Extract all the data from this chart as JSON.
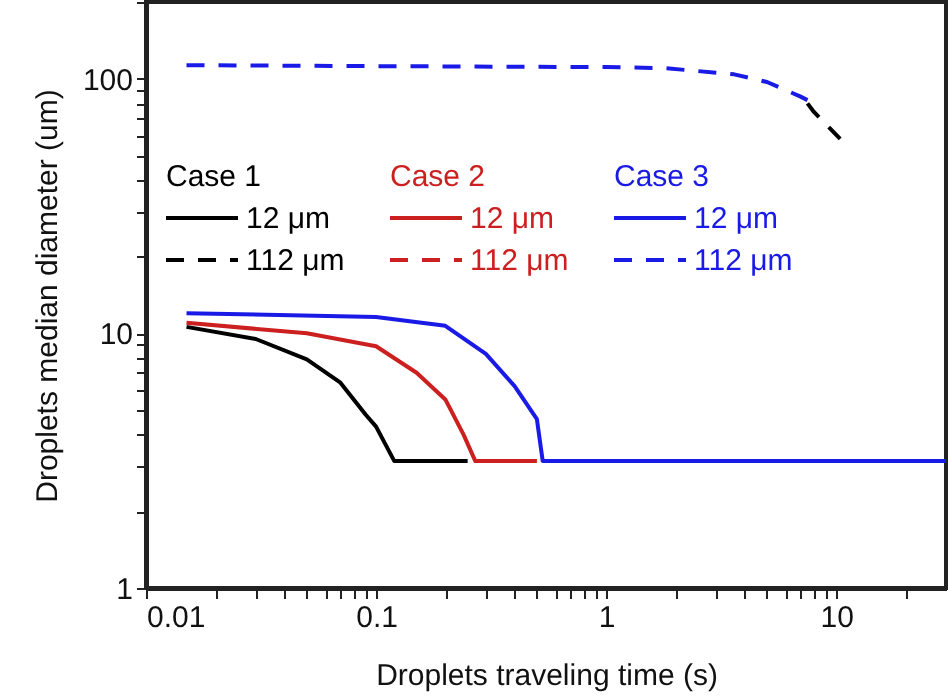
{
  "chart_data": {
    "type": "line",
    "xlabel": "Droplets traveling time (s)",
    "ylabel": "Droplets median diameter (um)",
    "log": "xy",
    "xlim": [
      0.01,
      30
    ],
    "ylim": [
      1,
      200
    ],
    "xticks": [
      0.01,
      {
        "value": 0.02,
        "label": null
      },
      {
        "value": 0.03,
        "label": null
      },
      {
        "value": 0.04,
        "label": null
      },
      {
        "value": 0.05,
        "label": null
      },
      {
        "value": 0.06,
        "label": null
      },
      {
        "value": 0.07,
        "label": null
      },
      {
        "value": 0.08,
        "label": null
      },
      {
        "value": 0.09,
        "label": null
      },
      0.1,
      {
        "value": 0.2,
        "label": null
      },
      {
        "value": 0.3,
        "label": null
      },
      {
        "value": 0.4,
        "label": null
      },
      {
        "value": 0.5,
        "label": null
      },
      {
        "value": 0.6,
        "label": null
      },
      {
        "value": 0.7,
        "label": null
      },
      {
        "value": 0.8,
        "label": null
      },
      {
        "value": 0.9,
        "label": null
      },
      1,
      {
        "value": 2,
        "label": null
      },
      {
        "value": 3,
        "label": null
      },
      {
        "value": 4,
        "label": null
      },
      {
        "value": 5,
        "label": null
      },
      {
        "value": 6,
        "label": null
      },
      {
        "value": 7,
        "label": null
      },
      {
        "value": 8,
        "label": null
      },
      {
        "value": 9,
        "label": null
      },
      10,
      {
        "value": 20,
        "label": null
      }
    ],
    "yticks": [
      1,
      {
        "value": 2,
        "label": null
      },
      {
        "value": 3,
        "label": null
      },
      {
        "value": 4,
        "label": null
      },
      {
        "value": 5,
        "label": null
      },
      {
        "value": 6,
        "label": null
      },
      {
        "value": 7,
        "label": null
      },
      {
        "value": 8,
        "label": null
      },
      {
        "value": 9,
        "label": null
      },
      10,
      {
        "value": 20,
        "label": null
      },
      {
        "value": 30,
        "label": null
      },
      {
        "value": 40,
        "label": null
      },
      {
        "value": 50,
        "label": null
      },
      {
        "value": 60,
        "label": null
      },
      {
        "value": 70,
        "label": null
      },
      {
        "value": 80,
        "label": null
      },
      {
        "value": 90,
        "label": null
      },
      100,
      {
        "value": 200,
        "label": null
      }
    ],
    "legend": "left",
    "annotations": [
      "Case 1",
      "Case 2",
      "Case 3"
    ],
    "series": [
      {
        "name": "12 μm",
        "color": "#000000",
        "line_style": "solid",
        "x": [
          0.015,
          0.03,
          0.05,
          0.07,
          0.09,
          0.1,
          0.12,
          0.25
        ],
        "values": [
          10.6,
          9.5,
          7.9,
          6.4,
          4.8,
          4.3,
          3.15,
          3.15
        ]
      },
      {
        "name": "112 μm",
        "color": "#000000",
        "line_style": "dashed",
        "x": [
          7.5,
          8,
          10.4
        ],
        "values": [
          80,
          74,
          58
        ]
      },
      {
        "name": "12 μm",
        "color": "#cc1f1f",
        "line_style": "solid",
        "x": [
          0.015,
          0.05,
          0.1,
          0.15,
          0.2,
          0.24,
          0.27,
          0.5
        ],
        "values": [
          11,
          10,
          8.9,
          7,
          5.5,
          4,
          3.15,
          3.15
        ]
      },
      {
        "name": "112 μm",
        "color": "#cc1f1f",
        "line_style": "dashed"
      },
      {
        "name": "12 μm",
        "color": "#1a1ae6",
        "line_style": "solid",
        "x": [
          0.015,
          0.1,
          0.2,
          0.3,
          0.4,
          0.5,
          0.53,
          30
        ],
        "values": [
          12,
          11.6,
          10.7,
          8.3,
          6.2,
          4.6,
          3.15,
          3.15
        ]
      },
      {
        "name": "112 μm",
        "color": "#1a1ae6",
        "line_style": "dashed",
        "x": [
          0.015,
          0.1,
          1,
          1.8,
          3.6,
          5,
          7,
          8
        ],
        "values": [
          113,
          112,
          111,
          110,
          104,
          97,
          85,
          80
        ]
      }
    ]
  }
}
